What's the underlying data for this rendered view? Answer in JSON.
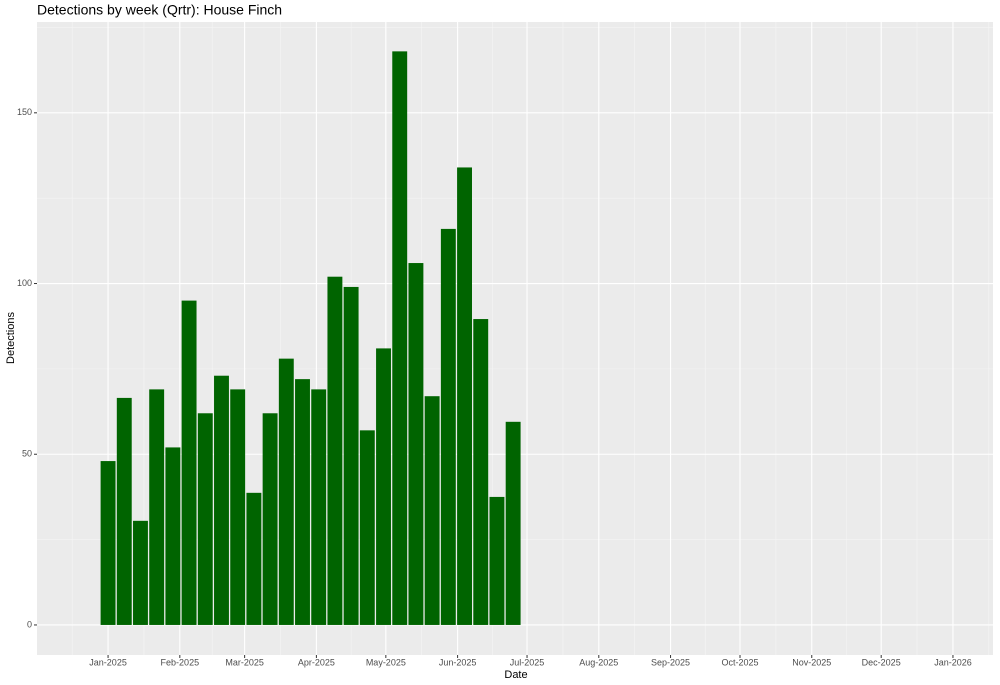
{
  "chart_data": {
    "type": "bar",
    "title": "Detections by week (Qrtr): House Finch",
    "x_label": "Date",
    "y_label": "Detections",
    "x": [
      0,
      7,
      14,
      21,
      28,
      35,
      42,
      49,
      56,
      63,
      70,
      77,
      84,
      91,
      98,
      105,
      112,
      119,
      126,
      133,
      140,
      147,
      154,
      161,
      168,
      175
    ],
    "values": [
      48,
      66.5,
      30.5,
      69,
      52,
      95,
      62,
      73,
      69,
      38.7,
      62,
      78,
      72,
      69,
      102,
      99,
      57,
      81,
      168,
      106,
      67,
      116,
      134,
      89.6,
      37.5,
      59.5
    ],
    "color": "#006400",
    "xlim": [
      -30.7,
      382.3
    ],
    "xticks": [
      {
        "value": 0,
        "label": "Jan-2025"
      },
      {
        "value": 31,
        "label": "Feb-2025"
      },
      {
        "value": 59,
        "label": "Mar-2025"
      },
      {
        "value": 90,
        "label": "Apr-2025"
      },
      {
        "value": 120,
        "label": "May-2025"
      },
      {
        "value": 151,
        "label": "Jun-2025"
      },
      {
        "value": 181,
        "label": "Jul-2025"
      },
      {
        "value": 212,
        "label": "Aug-2025"
      },
      {
        "value": 243,
        "label": "Sep-2025"
      },
      {
        "value": 273,
        "label": "Oct-2025"
      },
      {
        "value": 304,
        "label": "Nov-2025"
      },
      {
        "value": 334,
        "label": "Dec-2025"
      },
      {
        "value": 365,
        "label": "Jan-2026"
      }
    ],
    "ylim": [
      -8.8,
      176.6
    ],
    "yticks": [
      0,
      50,
      100,
      150
    ],
    "grid": true
  }
}
